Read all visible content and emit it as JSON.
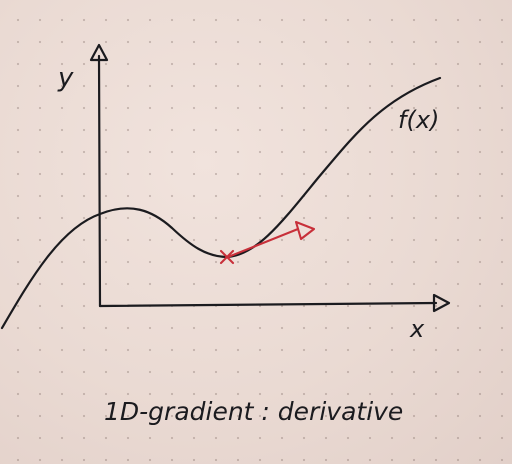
{
  "diagram": {
    "y_axis_label": "y",
    "x_axis_label": "x",
    "curve_label": "f(x)",
    "caption": "1D-gradient : derivative",
    "colors": {
      "paper": "#ecdcd5",
      "ink": "#1b1b1f",
      "gradient_arrow": "#c8303a"
    }
  }
}
